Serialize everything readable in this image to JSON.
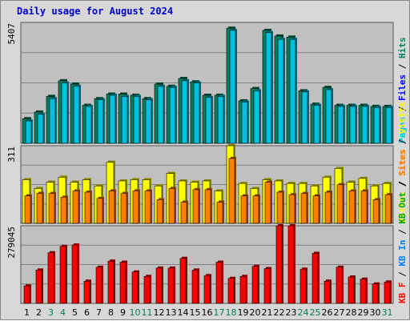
{
  "title": "Daily usage for August 2024",
  "colors": {
    "hits": "#00805c",
    "files": "#0000ff",
    "pages": "#00c0e0",
    "visits": "#ffff00",
    "sites": "#ff8000",
    "kb_in": "#0080ff",
    "kb_out": "#00a000",
    "kbytes": "#ff0000",
    "weekend_label": "#00805c"
  },
  "chart_data": [
    {
      "type": "bar",
      "panel": "top",
      "max_label": "5407",
      "legend": [
        "Pages",
        "Files",
        "Hits"
      ],
      "days": [
        "1",
        "2",
        "3",
        "4",
        "5",
        "6",
        "7",
        "8",
        "9",
        "10",
        "11",
        "12",
        "13",
        "14",
        "15",
        "16",
        "17",
        "18",
        "19",
        "20",
        "21",
        "22",
        "23",
        "24",
        "25",
        "26",
        "27",
        "28",
        "29",
        "30",
        "31"
      ],
      "weekend_days": [
        "3",
        "4",
        "10",
        "11",
        "17",
        "18",
        "24",
        "25",
        "31"
      ],
      "ylim": [
        0,
        5407
      ],
      "series": [
        {
          "name": "Hits",
          "values": [
            1100,
            1400,
            2100,
            2800,
            2650,
            1700,
            2000,
            2200,
            2200,
            2150,
            2000,
            2650,
            2550,
            2900,
            2750,
            2150,
            2150,
            5150,
            1900,
            2450,
            5050,
            4800,
            4750,
            2350,
            1750,
            2500,
            1700,
            1700,
            1700,
            1650,
            1650
          ]
        },
        {
          "name": "Files",
          "values": [
            0,
            0,
            0,
            0,
            0,
            0,
            0,
            0,
            0,
            0,
            0,
            0,
            0,
            0,
            0,
            0,
            0,
            0,
            0,
            0,
            0,
            0,
            0,
            0,
            0,
            0,
            0,
            0,
            0,
            0,
            0
          ]
        },
        {
          "name": "Pages",
          "values": [
            1000,
            1300,
            2000,
            2700,
            2550,
            1650,
            1950,
            2150,
            2100,
            2100,
            1950,
            2550,
            2500,
            2800,
            2700,
            2050,
            2100,
            5050,
            1850,
            2350,
            4950,
            4650,
            4650,
            2300,
            1700,
            2400,
            1650,
            1650,
            1650,
            1600,
            1600
          ]
        }
      ]
    },
    {
      "type": "bar",
      "panel": "middle",
      "max_label": "311",
      "legend": [
        "Visits",
        "Sites"
      ],
      "ylim": [
        0,
        311
      ],
      "series": [
        {
          "name": "Visits",
          "values": [
            175,
            140,
            165,
            185,
            165,
            175,
            150,
            245,
            170,
            175,
            175,
            150,
            200,
            170,
            165,
            170,
            130,
            311,
            160,
            140,
            175,
            170,
            160,
            160,
            150,
            185,
            220,
            165,
            180,
            150,
            160
          ]
        },
        {
          "name": "Sites",
          "values": [
            110,
            120,
            120,
            105,
            130,
            125,
            100,
            130,
            120,
            130,
            130,
            95,
            140,
            85,
            135,
            135,
            85,
            260,
            110,
            110,
            165,
            125,
            115,
            120,
            110,
            125,
            155,
            130,
            130,
            95,
            115
          ]
        }
      ]
    },
    {
      "type": "bar",
      "panel": "bottom",
      "max_label": "279045",
      "legend": [
        "KB F",
        "KB In",
        "KB Out",
        "Sites",
        "Visits"
      ],
      "ylim": [
        0,
        279045
      ],
      "series": [
        {
          "name": "KB F",
          "values": [
            63000,
            120000,
            182000,
            205000,
            210000,
            80000,
            130000,
            152000,
            148000,
            113000,
            97000,
            127000,
            127000,
            162000,
            120000,
            100000,
            148000,
            90000,
            97000,
            133000,
            125000,
            279045,
            279045,
            123000,
            180000,
            80000,
            130000,
            95000,
            87000,
            70000,
            77000
          ]
        }
      ]
    }
  ]
}
